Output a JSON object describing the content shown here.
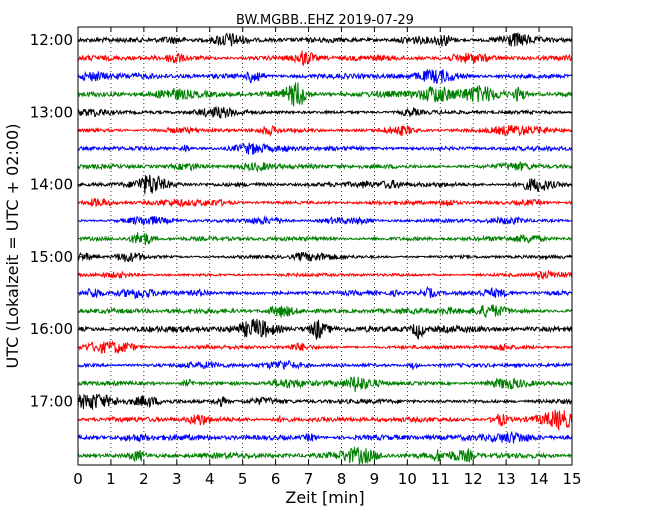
{
  "chart_data": {
    "type": "line",
    "title": "BW.MGBB..EHZ 2019-07-29",
    "xlabel": "Zeit  [min]",
    "ylabel": "UTC (Lokalzeit = UTC + 02:00)",
    "xlim": [
      0,
      15
    ],
    "x_ticks": [
      "0",
      "1",
      "2",
      "3",
      "4",
      "5",
      "6",
      "7",
      "8",
      "9",
      "10",
      "11",
      "12",
      "13",
      "14",
      "15"
    ],
    "y_ticks": [
      "12:00",
      "13:00",
      "14:00",
      "15:00",
      "16:00",
      "17:00"
    ],
    "grid": "vertical dotted",
    "colors": [
      "#000000",
      "#ff0000",
      "#0000ff",
      "#008000"
    ],
    "traces": [
      {
        "start": "12:00",
        "color": "#000000",
        "amplitude": 0.45
      },
      {
        "start": "12:15",
        "color": "#ff0000",
        "amplitude": 0.5
      },
      {
        "start": "12:30",
        "color": "#0000ff",
        "amplitude": 0.5
      },
      {
        "start": "12:45",
        "color": "#008000",
        "amplitude": 0.6
      },
      {
        "start": "13:00",
        "color": "#000000",
        "amplitude": 0.35
      },
      {
        "start": "13:15",
        "color": "#ff0000",
        "amplitude": 0.35
      },
      {
        "start": "13:30",
        "color": "#0000ff",
        "amplitude": 0.4
      },
      {
        "start": "13:45",
        "color": "#008000",
        "amplitude": 0.4
      },
      {
        "start": "14:00",
        "color": "#000000",
        "amplitude": 0.45
      },
      {
        "start": "14:15",
        "color": "#ff0000",
        "amplitude": 0.35
      },
      {
        "start": "14:30",
        "color": "#0000ff",
        "amplitude": 0.3
      },
      {
        "start": "14:45",
        "color": "#008000",
        "amplitude": 0.4
      },
      {
        "start": "15:00",
        "color": "#000000",
        "amplitude": 0.3
      },
      {
        "start": "15:15",
        "color": "#ff0000",
        "amplitude": 0.3
      },
      {
        "start": "15:30",
        "color": "#0000ff",
        "amplitude": 0.4
      },
      {
        "start": "15:45",
        "color": "#008000",
        "amplitude": 0.45
      },
      {
        "start": "16:00",
        "color": "#000000",
        "amplitude": 0.6
      },
      {
        "start": "16:15",
        "color": "#ff0000",
        "amplitude": 0.35
      },
      {
        "start": "16:30",
        "color": "#0000ff",
        "amplitude": 0.35
      },
      {
        "start": "16:45",
        "color": "#008000",
        "amplitude": 0.4
      },
      {
        "start": "17:00",
        "color": "#000000",
        "amplitude": 0.4
      },
      {
        "start": "17:15",
        "color": "#ff0000",
        "amplitude": 0.45
      },
      {
        "start": "17:30",
        "color": "#0000ff",
        "amplitude": 0.5
      },
      {
        "start": "17:45",
        "color": "#008000",
        "amplitude": 0.5
      }
    ]
  }
}
